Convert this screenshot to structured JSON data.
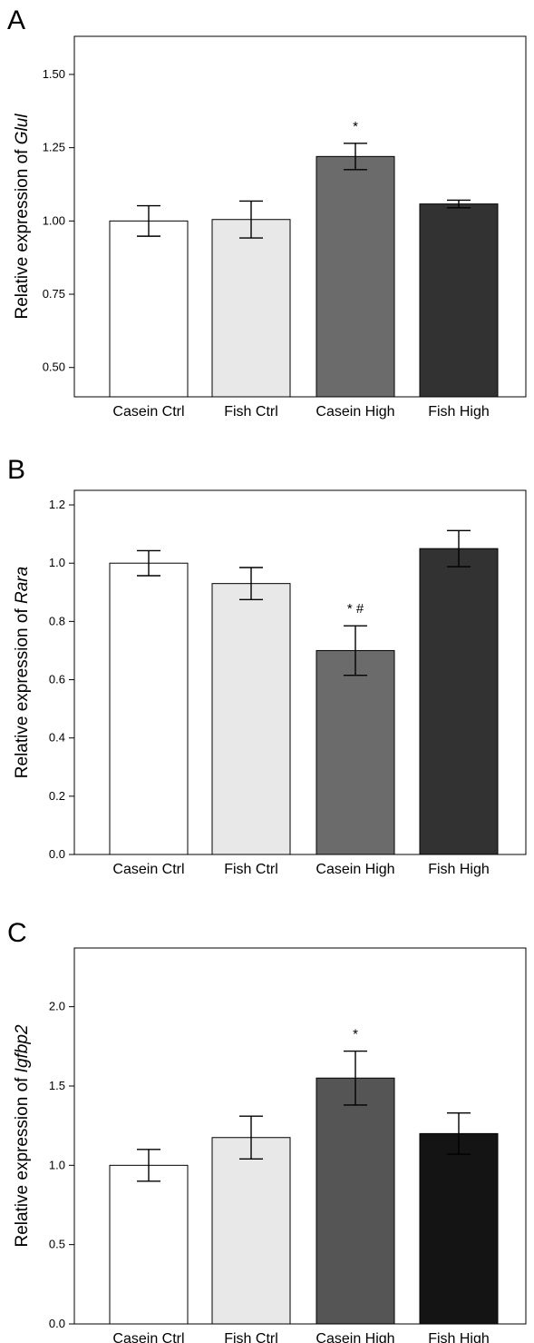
{
  "chart_data": [
    {
      "type": "bar",
      "panel_label": "A",
      "ylabel_prefix": "Relative expression of ",
      "ylabel_gene": "Glul",
      "categories": [
        "Casein Ctrl",
        "Fish Ctrl",
        "Casein High",
        "Fish High"
      ],
      "values": [
        1.0,
        1.005,
        1.22,
        1.058
      ],
      "errors": [
        0.052,
        0.063,
        0.045,
        0.013
      ],
      "annotations": [
        "",
        "",
        "*",
        ""
      ],
      "colors": [
        "#ffffff",
        "#e8e8e8",
        "#6b6b6b",
        "#323232"
      ],
      "ylim": [
        0.4,
        1.63
      ],
      "yticks": [
        0.5,
        0.75,
        1.0,
        1.25,
        1.5
      ],
      "ytick_labels": [
        "0.50",
        "0.75",
        "1.00",
        "1.25",
        "1.50"
      ]
    },
    {
      "type": "bar",
      "panel_label": "B",
      "ylabel_prefix": "Relative expression of ",
      "ylabel_gene": "Rara",
      "categories": [
        "Casein Ctrl",
        "Fish Ctrl",
        "Casein High",
        "Fish High"
      ],
      "values": [
        1.0,
        0.93,
        0.7,
        1.05
      ],
      "errors": [
        0.043,
        0.055,
        0.085,
        0.062
      ],
      "annotations": [
        "",
        "",
        "* #",
        ""
      ],
      "colors": [
        "#ffffff",
        "#e8e8e8",
        "#6b6b6b",
        "#323232"
      ],
      "ylim": [
        0,
        1.25
      ],
      "yticks": [
        0.0,
        0.2,
        0.4,
        0.6,
        0.8,
        1.0,
        1.2
      ],
      "ytick_labels": [
        "0.0",
        "0.2",
        "0.4",
        "0.6",
        "0.8",
        "1.0",
        "1.2"
      ]
    },
    {
      "type": "bar",
      "panel_label": "C",
      "ylabel_prefix": "Relative expression of ",
      "ylabel_gene": "Igfbp2",
      "categories": [
        "Casein Ctrl",
        "Fish Ctrl",
        "Casein High",
        "Fish High"
      ],
      "values": [
        1.0,
        1.175,
        1.55,
        1.2
      ],
      "errors": [
        0.1,
        0.135,
        0.17,
        0.13
      ],
      "annotations": [
        "",
        "",
        "*",
        ""
      ],
      "colors": [
        "#ffffff",
        "#e8e8e8",
        "#555555",
        "#141414"
      ],
      "ylim": [
        0,
        2.37
      ],
      "yticks": [
        0.0,
        0.5,
        1.0,
        1.5,
        2.0
      ],
      "ytick_labels": [
        "0.0",
        "0.5",
        "1.0",
        "1.5",
        "2.0"
      ]
    }
  ]
}
